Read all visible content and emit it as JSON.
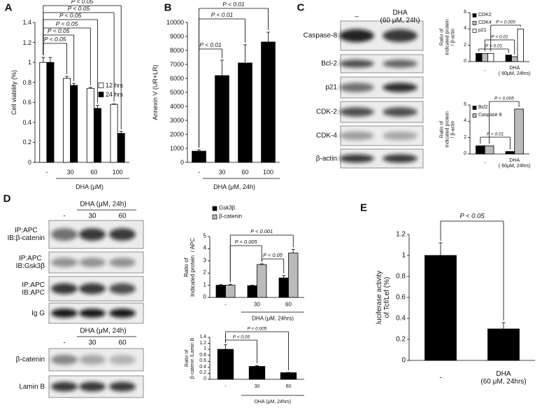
{
  "panels": [
    "A",
    "B",
    "C",
    "D",
    "E"
  ],
  "chart_data": [
    {
      "type": "bar",
      "ylabel": "Cell viability (%)",
      "xlabel": "DHA (μM)",
      "categories": [
        "-",
        "30",
        "60",
        "100"
      ],
      "series": [
        {
          "name": "12 hrs",
          "color": "#ffffff",
          "values": [
            1,
            0.84,
            0.74,
            0.58
          ],
          "errors": [
            0.05,
            0.02,
            0.01,
            0.005
          ]
        },
        {
          "name": "24 hrs",
          "color": "#000000",
          "values": [
            1,
            0.77,
            0.54,
            0.29
          ],
          "errors": [
            0.05,
            0.02,
            0.03,
            0.02
          ]
        }
      ],
      "ylim": [
        0,
        1.4
      ],
      "yticks": [
        0,
        0.2,
        0.4,
        0.6,
        0.8,
        1,
        1.2,
        1.4
      ],
      "legend": "center right",
      "annotations": [
        "P < 0.05",
        "P < 0.05",
        "P < 0.05",
        "P < 0.05",
        "P < 0.05",
        "P < 0.05"
      ]
    },
    {
      "type": "bar",
      "ylabel": "Annexin V (UR+LR)",
      "xlabel": "DHA (μM, 24h)",
      "categories": [
        "-",
        "30",
        "60",
        "100"
      ],
      "values": [
        800,
        6200,
        7100,
        8600
      ],
      "errors": [
        100,
        1100,
        1300,
        700
      ],
      "color": "#000000",
      "ylim": [
        0,
        10000
      ],
      "yticks": [
        0,
        1000,
        2000,
        3000,
        4000,
        5000,
        6000,
        7000,
        8000,
        9000,
        10000
      ],
      "annotations": [
        "P < 0.01",
        "P < 0.01",
        "P < 0.01"
      ]
    },
    {
      "type": "bar",
      "ylabel": "Ratio of\nIndicated protein\n/ β-actin",
      "categories": [
        "-",
        "DHA\n( 60μM, 24hrs)"
      ],
      "series": [
        {
          "name": "CDK2",
          "color": "#000000",
          "values": [
            1,
            0.8
          ]
        },
        {
          "name": "CDK4",
          "color": "#bbbbbb",
          "values": [
            1,
            0.6
          ]
        },
        {
          "name": "p21",
          "color": "#ffffff",
          "values": [
            1,
            4
          ]
        }
      ],
      "ylim": [
        0,
        6
      ],
      "yticks": [
        0,
        2,
        4,
        6
      ],
      "legend": "upper left",
      "annotations": [
        "P < 0.005",
        "P < 0.01",
        "P < 0.01"
      ]
    },
    {
      "type": "bar",
      "ylabel": "Ratio of\nIndicated protein\n/ β-actin",
      "categories": [
        "-",
        "DHA\n( 60μM, 24hrs)"
      ],
      "series": [
        {
          "name": "Bcl2",
          "color": "#000000",
          "values": [
            1,
            0.3
          ]
        },
        {
          "name": "Caspase 8",
          "color": "#bbbbbb",
          "values": [
            1,
            5.5
          ]
        }
      ],
      "ylim": [
        0,
        6
      ],
      "yticks": [
        0,
        2,
        4,
        6
      ],
      "legend": "upper left",
      "annotations": [
        "P < 0.005",
        "P < 0.01"
      ]
    },
    {
      "type": "bar",
      "ylabel": "Ratio of\nIndicated protein  / APC",
      "xlabel": "DHA (μM, 24hrs)",
      "categories": [
        "-",
        "30",
        "60"
      ],
      "series": [
        {
          "name": "Gsk3β",
          "color": "#000000",
          "values": [
            1,
            0.97,
            1.6
          ],
          "errors": [
            0.05,
            0.03,
            0.2
          ]
        },
        {
          "name": "β-catenin",
          "color": "#bbbbbb",
          "values": [
            1,
            2.7,
            3.65
          ],
          "errors": [
            0.08,
            0.06,
            0.3
          ]
        }
      ],
      "ylim": [
        0,
        5
      ],
      "yticks": [
        0,
        1,
        2,
        3,
        4,
        5
      ],
      "legend": "upper left",
      "annotations": [
        "P < 0.001",
        "P < 0.005",
        "P < 0.05"
      ]
    },
    {
      "type": "bar",
      "ylabel": "Ratio of\nβ-catenin /Lamin B",
      "xlabel": "DHA (μM, 24hrs)",
      "categories": [
        "-",
        "30",
        "60"
      ],
      "values": [
        1,
        0.43,
        0.22
      ],
      "errors": [
        0.15,
        0.03,
        0.01
      ],
      "color": "#000000",
      "ylim": [
        0,
        1.4
      ],
      "yticks": [
        0,
        0.2,
        0.4,
        0.6,
        0.8,
        1,
        1.2,
        1.4
      ],
      "annotations": [
        "P < 0.005",
        "P < 0.05"
      ]
    },
    {
      "type": "bar",
      "ylabel": "luciferase activity\nof Tcf/Lef (%)",
      "categories": [
        "-",
        "DHA\n(60 μM, 24hrs)"
      ],
      "values": [
        1,
        0.3
      ],
      "errors": [
        0.12,
        0.06
      ],
      "color": "#000000",
      "ylim": [
        0,
        1.2
      ],
      "yticks": [
        0,
        0.2,
        0.4,
        0.6,
        0.8,
        1,
        1.2
      ],
      "annotations": [
        "P < 0.05"
      ]
    }
  ],
  "blots": [
    {
      "lanes": [
        "–",
        "DHA\n(60 μM, 24h)"
      ],
      "rows": [
        "Caspase-8",
        "Bcl-2",
        "p21",
        "CDK-2",
        "CDK-4",
        "β-actin"
      ]
    },
    {
      "title": "DHA (μM, 24h)",
      "lanes": [
        "-",
        "30",
        "60"
      ],
      "rows": [
        "IP:APC\nIB:β-catenin",
        "IP:APC\nIB:Gsk3β",
        "IP:APC\nIB:APC",
        "Ig G"
      ]
    },
    {
      "title": "DHA (μM, 24h)",
      "lanes": [
        "-",
        "30",
        "60"
      ],
      "rows": [
        "β-catenin",
        "Lamin B"
      ]
    }
  ]
}
